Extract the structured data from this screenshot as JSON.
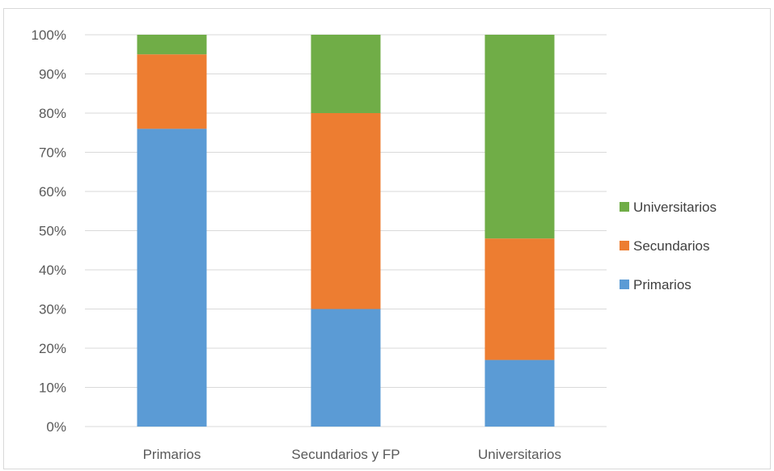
{
  "chart_data": {
    "type": "bar",
    "stacked": true,
    "percent": true,
    "title": "",
    "xlabel": "",
    "ylabel": "",
    "ylim": [
      0,
      100
    ],
    "yticks": [
      "0%",
      "10%",
      "20%",
      "30%",
      "40%",
      "50%",
      "60%",
      "70%",
      "80%",
      "90%",
      "100%"
    ],
    "grid": true,
    "legend_position": "right",
    "categories": [
      "Primarios",
      "Secundarios y FP",
      "Universitarios"
    ],
    "series": [
      {
        "name": "Primarios",
        "color": "#5b9bd5",
        "values": [
          76,
          30,
          17
        ]
      },
      {
        "name": "Secundarios",
        "color": "#ed7d31",
        "values": [
          19,
          50,
          31
        ]
      },
      {
        "name": "Universitarios",
        "color": "#70ad47",
        "values": [
          5,
          20,
          52
        ]
      }
    ],
    "legend_order": [
      "Universitarios",
      "Secundarios",
      "Primarios"
    ]
  }
}
